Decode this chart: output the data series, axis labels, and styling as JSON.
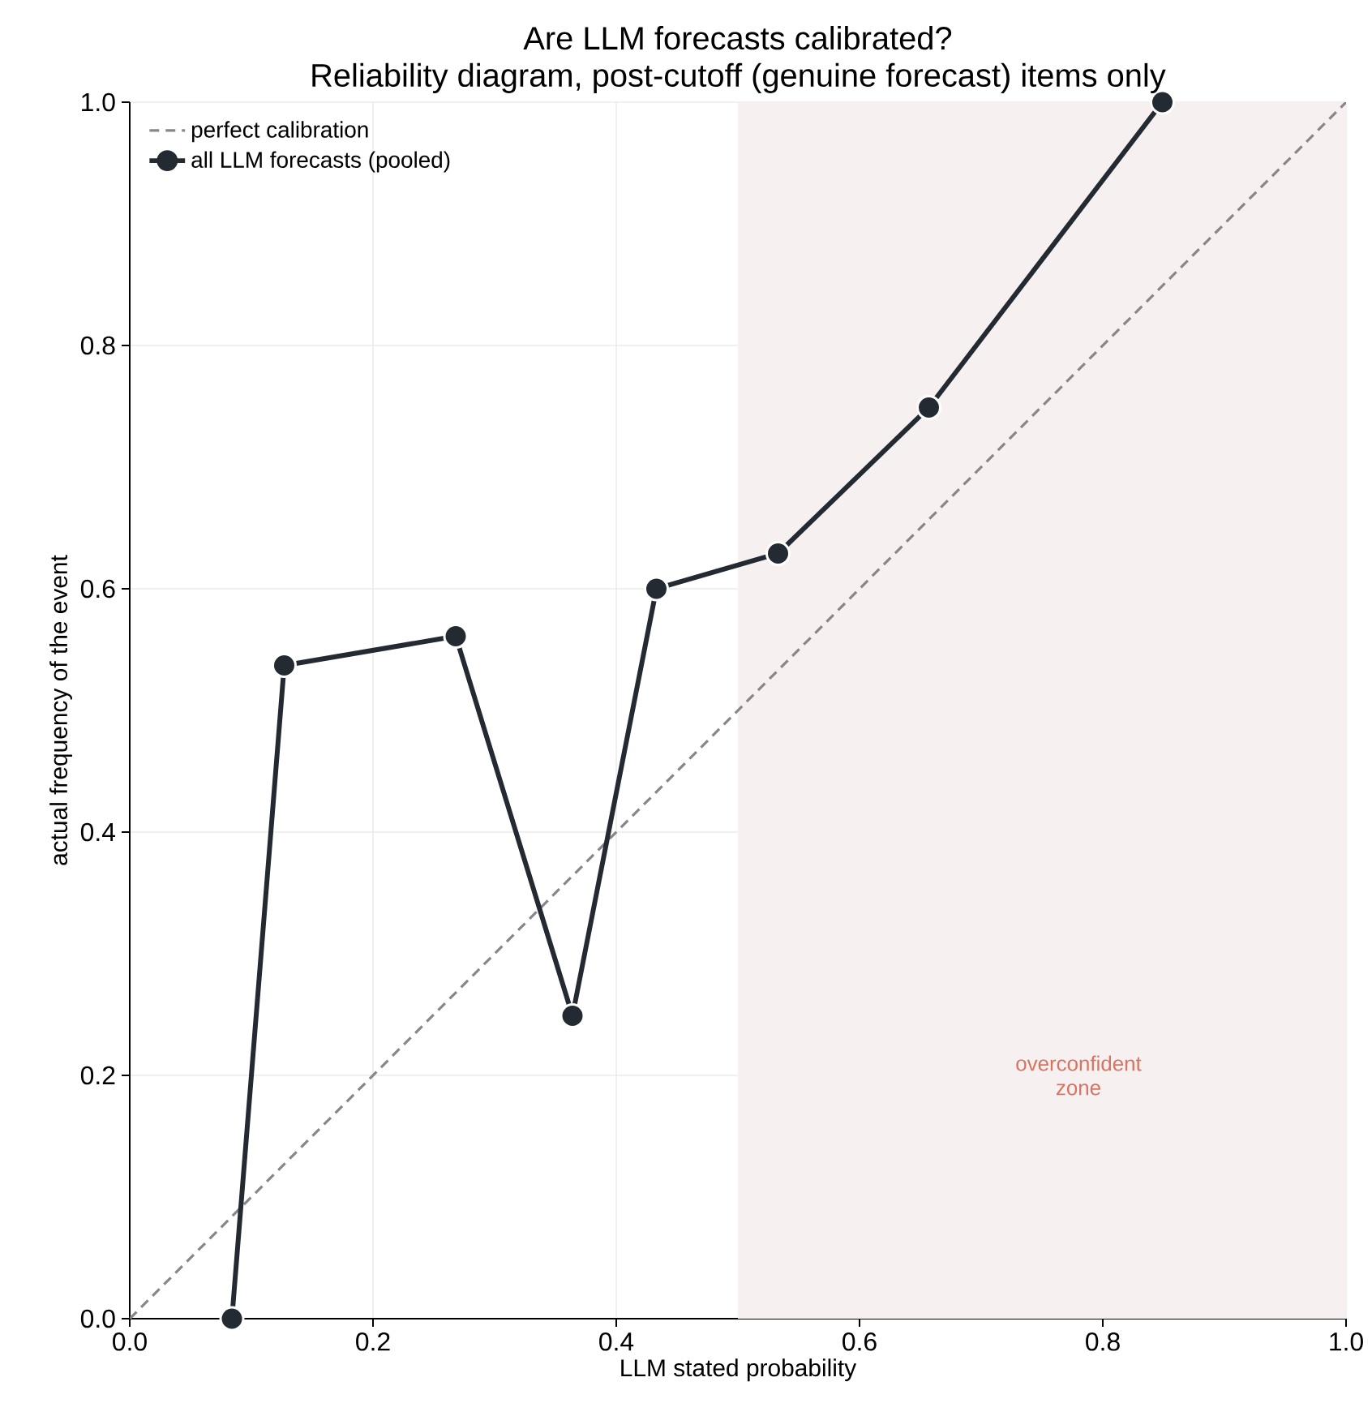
{
  "chart_data": {
    "type": "line",
    "title": "Are LLM forecasts calibrated?\nReliability diagram, post-cutoff (genuine forecast) items only",
    "xlabel": "LLM stated probability",
    "ylabel": "actual frequency of the event",
    "xlim": [
      0,
      1
    ],
    "ylim": [
      0,
      1
    ],
    "xticks": [
      {
        "value": 0,
        "label": "0.0"
      },
      0.2,
      0.4,
      0.6,
      0.8,
      {
        "value": 1,
        "label": "1.0"
      }
    ],
    "yticks": [
      {
        "value": 0,
        "label": "0.0"
      },
      0.2,
      0.4,
      0.6,
      0.8,
      {
        "value": 1,
        "label": "1.0"
      }
    ],
    "grid": true,
    "legend": "top left",
    "bands": [
      {
        "axis": "x",
        "from": 0.5,
        "to": 1,
        "color": "#f6f1f0"
      }
    ],
    "annotations": [
      "overconfident zone"
    ],
    "series": [
      {
        "name": "perfect calibration",
        "color": "#8a8589",
        "line_style": "dashed",
        "marker": "none",
        "x": [
          0,
          1
        ],
        "values": [
          0,
          1
        ]
      },
      {
        "name": "all LLM forecasts (pooled)",
        "color": "#232a31",
        "line_style": "solid",
        "marker": "circle",
        "x": [
          0.084,
          0.127,
          0.268,
          0.364,
          0.433,
          0.533,
          0.657,
          0.849
        ],
        "values": [
          0,
          0.537,
          0.561,
          0.249,
          0.6,
          0.629,
          0.749,
          1.0
        ]
      }
    ]
  }
}
